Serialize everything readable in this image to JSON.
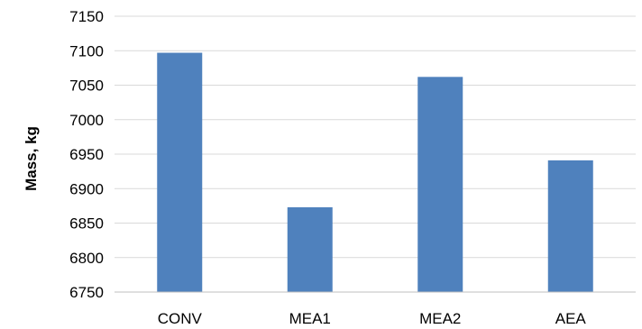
{
  "chart_data": {
    "type": "bar",
    "title": "",
    "xlabel": "",
    "ylabel": "Mass, kg",
    "categories": [
      "CONV",
      "MEA1",
      "MEA2",
      "AEA"
    ],
    "values": [
      7097,
      6873,
      7062,
      6941
    ],
    "ylim": [
      6750,
      7150
    ],
    "yticks": [
      6750,
      6800,
      6850,
      6900,
      6950,
      7000,
      7050,
      7100,
      7150
    ],
    "grid": true,
    "legend": "none",
    "colors": {
      "bar": "#4F81BD",
      "grid": "#D9D9D9",
      "axis": "#BFBFBF"
    }
  }
}
